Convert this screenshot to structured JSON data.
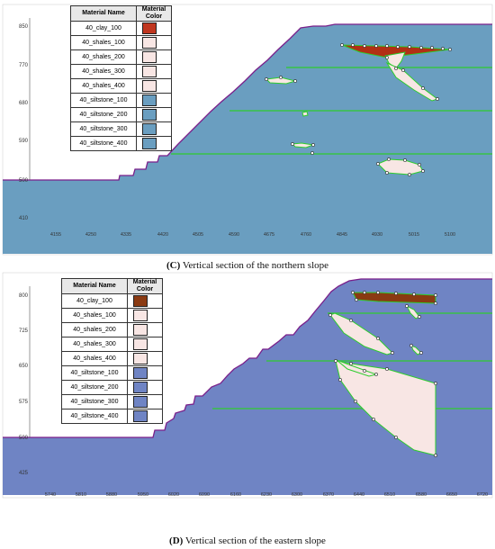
{
  "section_c": {
    "legend": {
      "header_name": "Material Name",
      "header_color": "Material Color",
      "rows": [
        {
          "name": "40_clay_100",
          "color": "#c0361f"
        },
        {
          "name": "40_shales_100",
          "color": "#f8e6e4"
        },
        {
          "name": "40_shales_200",
          "color": "#f8e6e4"
        },
        {
          "name": "40_shales_300",
          "color": "#f8e6e4"
        },
        {
          "name": "40_shales_400",
          "color": "#f8e6e4"
        },
        {
          "name": "40_siltstone_100",
          "color": "#6a9ec0"
        },
        {
          "name": "40_siltstone_200",
          "color": "#6a9ec0"
        },
        {
          "name": "40_siltstone_300",
          "color": "#6a9ec0"
        },
        {
          "name": "40_siltstone_400",
          "color": "#6a9ec0"
        }
      ]
    },
    "y_ticks": [
      "850",
      "770",
      "680",
      "590",
      "500",
      "410"
    ],
    "x_ticks": [
      "4155",
      "4250",
      "4335",
      "4420",
      "4505",
      "4590",
      "4675",
      "4760",
      "4845",
      "4930",
      "5015",
      "5100"
    ],
    "caption_letter": "(C)",
    "caption_text": " Vertical section of the northern slope"
  },
  "section_d": {
    "legend": {
      "header_name": "Material Name",
      "header_color": "Material Color",
      "rows": [
        {
          "name": "40_clay_100",
          "color": "#8a3a12"
        },
        {
          "name": "40_shales_100",
          "color": "#f8e6e4"
        },
        {
          "name": "40_shales_200",
          "color": "#f8e6e4"
        },
        {
          "name": "40_shales_300",
          "color": "#f8e6e4"
        },
        {
          "name": "40_shales_400",
          "color": "#f8e6e4"
        },
        {
          "name": "40_siltstone_100",
          "color": "#6f84c4"
        },
        {
          "name": "40_siltstone_200",
          "color": "#6f84c4"
        },
        {
          "name": "40_siltstone_300",
          "color": "#6f84c4"
        },
        {
          "name": "40_siltstone_400",
          "color": "#6f84c4"
        }
      ]
    },
    "y_ticks": [
      "800",
      "725",
      "650",
      "575",
      "500",
      "425"
    ],
    "x_ticks": [
      "5740",
      "5810",
      "5880",
      "5950",
      "6020",
      "6090",
      "6160",
      "6230",
      "6300",
      "6370",
      "6440",
      "6510",
      "6580",
      "6650",
      "6720"
    ],
    "caption_letter": "(D)",
    "caption_text": " Vertical section of the eastern slope"
  },
  "colors": {
    "background_blue": "#6a9ec0",
    "shale_fill": "#f8e6e4",
    "clay_fill": "#b22f14",
    "boundary_green": "#2ecc2e",
    "surface_line": "#7a1f8a"
  }
}
